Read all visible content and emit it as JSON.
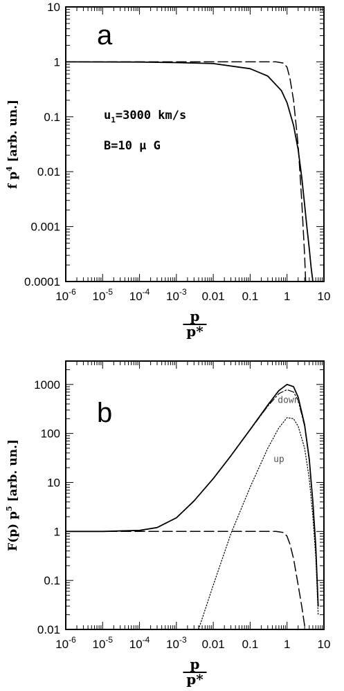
{
  "chart_data": [
    {
      "type": "line",
      "panel_label": "a",
      "xscale": "log",
      "yscale": "log",
      "xlim": [
        1e-06,
        10
      ],
      "ylim": [
        0.0001,
        10
      ],
      "xlabel": {
        "numerator": "p",
        "denominator": "p*"
      },
      "ylabel": {
        "main": "f p",
        "sup": "4",
        "unit": " [arb. un.]"
      },
      "xticks": [
        {
          "value": 1e-06,
          "mant": "10",
          "exp": "-6"
        },
        {
          "value": 1e-05,
          "mant": "10",
          "exp": "-5"
        },
        {
          "value": 0.0001,
          "mant": "10",
          "exp": "-4"
        },
        {
          "value": 0.001,
          "mant": "10",
          "exp": "-3"
        },
        {
          "value": 0.01,
          "mant": "0.01",
          "exp": ""
        },
        {
          "value": 0.1,
          "mant": "0.1",
          "exp": ""
        },
        {
          "value": 1,
          "mant": "1",
          "exp": ""
        },
        {
          "value": 10,
          "mant": "10",
          "exp": ""
        }
      ],
      "yticks": [
        {
          "value": 0.0001,
          "label": "0.0001"
        },
        {
          "value": 0.001,
          "label": "0.001"
        },
        {
          "value": 0.01,
          "label": "0.01"
        },
        {
          "value": 0.1,
          "label": "0.1"
        },
        {
          "value": 1,
          "label": "1"
        },
        {
          "value": 10,
          "label": "10"
        }
      ],
      "annotations": [
        {
          "text": "u",
          "sub": "1",
          "rest": "=3000 km/s"
        },
        {
          "text": "B=10 μ G"
        }
      ],
      "series": [
        {
          "style": "solid",
          "x": [
            1e-06,
            0.0001,
            0.001,
            0.01,
            0.1,
            0.3,
            0.7,
            1,
            1.5,
            2,
            2.5,
            3,
            3.5,
            4,
            4.5,
            5
          ],
          "y": [
            1,
            0.99,
            0.97,
            0.93,
            0.75,
            0.55,
            0.3,
            0.18,
            0.07,
            0.025,
            0.008,
            0.0025,
            0.0009,
            0.0004,
            0.00018,
            0.0001
          ]
        },
        {
          "style": "dashed",
          "x": [
            1e-06,
            0.01,
            0.5,
            0.8,
            1,
            1.2,
            1.5,
            2,
            2.5,
            3,
            3.2
          ],
          "y": [
            1,
            1,
            1,
            0.95,
            0.8,
            0.5,
            0.2,
            0.03,
            0.003,
            0.0003,
            0.0001
          ]
        }
      ]
    },
    {
      "type": "line",
      "panel_label": "b",
      "xscale": "log",
      "yscale": "log",
      "xlim": [
        1e-06,
        10
      ],
      "ylim": [
        0.01,
        3000
      ],
      "xlabel": {
        "numerator": "p",
        "denominator": "p*"
      },
      "ylabel": {
        "main": "F(p) p",
        "sup": "5",
        "unit": " [arb. un.]"
      },
      "xticks": [
        {
          "value": 1e-06,
          "mant": "10",
          "exp": "-6"
        },
        {
          "value": 1e-05,
          "mant": "10",
          "exp": "-5"
        },
        {
          "value": 0.0001,
          "mant": "10",
          "exp": "-4"
        },
        {
          "value": 0.001,
          "mant": "10",
          "exp": "-3"
        },
        {
          "value": 0.01,
          "mant": "0.01",
          "exp": ""
        },
        {
          "value": 0.1,
          "mant": "0.1",
          "exp": ""
        },
        {
          "value": 1,
          "mant": "1",
          "exp": ""
        },
        {
          "value": 10,
          "mant": "10",
          "exp": ""
        }
      ],
      "yticks": [
        {
          "value": 0.01,
          "label": "0.01"
        },
        {
          "value": 0.1,
          "label": "0.1"
        },
        {
          "value": 1,
          "label": "1"
        },
        {
          "value": 10,
          "label": "10"
        },
        {
          "value": 100,
          "label": "100"
        },
        {
          "value": 1000,
          "label": "1000"
        }
      ],
      "curve_labels": [
        {
          "text": "down",
          "x": 1.1,
          "y": 420
        },
        {
          "text": "up",
          "x": 0.6,
          "y": 26
        }
      ],
      "series": [
        {
          "style": "solid",
          "x": [
            1e-06,
            1e-05,
            0.0001,
            0.0003,
            0.001,
            0.003,
            0.01,
            0.03,
            0.1,
            0.3,
            0.6,
            1,
            1.5,
            2,
            3,
            4,
            5,
            6,
            7
          ],
          "y": [
            1,
            1,
            1.05,
            1.2,
            1.9,
            4.2,
            12,
            35,
            120,
            380,
            750,
            1000,
            900,
            550,
            150,
            30,
            4,
            0.5,
            0.03
          ]
        },
        {
          "style": "dashdot",
          "x": [
            0.01,
            0.03,
            0.1,
            0.3,
            0.6,
            1,
            1.5,
            2,
            3,
            4,
            5,
            6,
            7
          ],
          "y": [
            12,
            35,
            118,
            360,
            650,
            780,
            700,
            470,
            140,
            28,
            4,
            0.5,
            0.03
          ]
        },
        {
          "style": "dotted",
          "x": [
            0.004,
            0.01,
            0.03,
            0.1,
            0.3,
            0.6,
            1,
            1.5,
            2,
            3,
            4,
            5,
            6,
            7
          ],
          "y": [
            0.01,
            0.08,
            0.9,
            8,
            50,
            130,
            210,
            200,
            140,
            50,
            12,
            2,
            0.3,
            0.02
          ]
        },
        {
          "style": "dashed",
          "x": [
            1e-06,
            0.01,
            0.5,
            0.8,
            1,
            1.2,
            1.5,
            2,
            2.5,
            3,
            3.2
          ],
          "y": [
            1,
            1,
            1,
            0.95,
            0.8,
            0.55,
            0.28,
            0.08,
            0.03,
            0.012,
            0.01
          ]
        }
      ]
    }
  ]
}
